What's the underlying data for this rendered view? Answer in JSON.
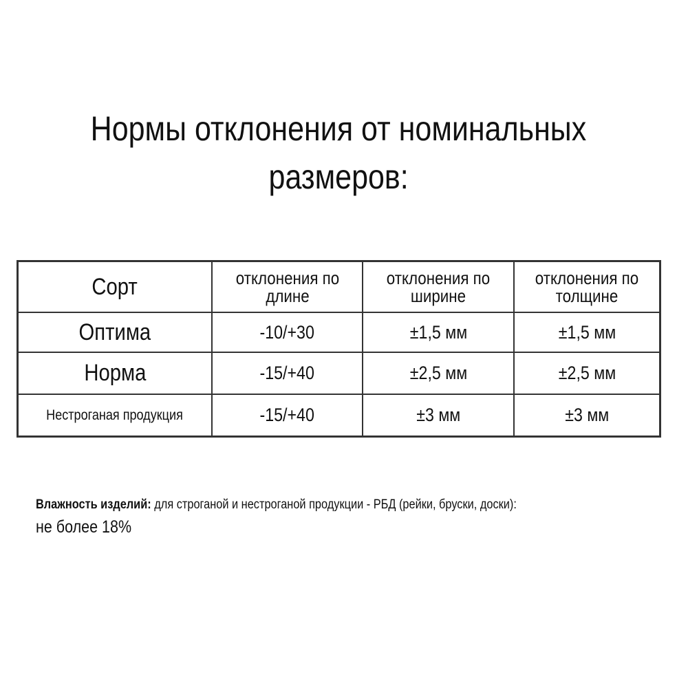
{
  "title": {
    "line1": "Нормы отклонения от номинальных",
    "line2": "размеров:"
  },
  "table": {
    "headers": [
      "Сорт",
      "отклонения по длине",
      "отклонения по ширине",
      "отклонения по толщине"
    ],
    "rows": [
      [
        "Оптима",
        "-10/+30",
        "±1,5 мм",
        "±1,5 мм"
      ],
      [
        "Норма",
        "-15/+40",
        "±2,5 мм",
        "±2,5 мм"
      ],
      [
        "Нестроганая продукция",
        "-15/+40",
        "±3 мм",
        "±3 мм"
      ]
    ]
  },
  "note": {
    "label": "Влажность изделий:",
    "text": " для строганой и нестроганой продукции - РБД (рейки, бруски, доски):",
    "value": "не более 18%"
  }
}
